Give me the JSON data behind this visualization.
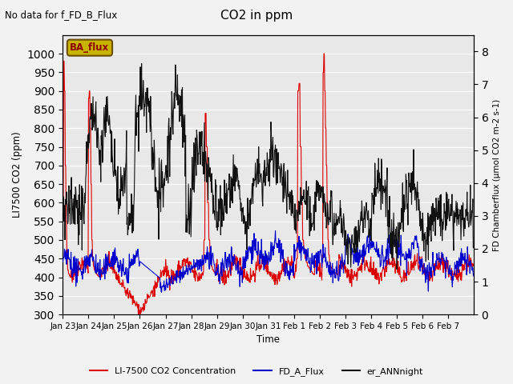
{
  "title": "CO2 in ppm",
  "top_left_text": "No data for f_FD_B_Flux",
  "ylabel_left": "LI7500 CO2 (ppm)",
  "ylabel_right": "FD Chamberflux (μmol CO2 m-2 s-1)",
  "xlabel": "Time",
  "ylim_left": [
    300,
    1050
  ],
  "ylim_right": [
    0.0,
    8.5
  ],
  "yticks_left": [
    300,
    350,
    400,
    450,
    500,
    550,
    600,
    650,
    700,
    750,
    800,
    850,
    900,
    950,
    1000
  ],
  "yticks_right": [
    0.0,
    1.0,
    2.0,
    3.0,
    4.0,
    5.0,
    6.0,
    7.0,
    8.0
  ],
  "background_color": "#e8e8e8",
  "line_red_color": "#dd0000",
  "line_blue_color": "#0000cc",
  "line_black_color": "#111111",
  "legend_labels": [
    "LI-7500 CO2 Concentration",
    "FD_A_Flux",
    "er_ANNnight"
  ],
  "ba_flux_box_color": "#c8b400",
  "ba_flux_text": "BA_flux",
  "n_points": 1008,
  "xtick_labels": [
    "Jan 23",
    "Jan 24",
    "Jan 25",
    "Jan 26",
    "Jan 27",
    "Jan 28",
    "Jan 29",
    "Jan 30",
    "Jan 31",
    "Feb 1",
    "Feb 2",
    "Feb 3",
    "Feb 4",
    "Feb 5",
    "Feb 6",
    "Feb 7"
  ]
}
